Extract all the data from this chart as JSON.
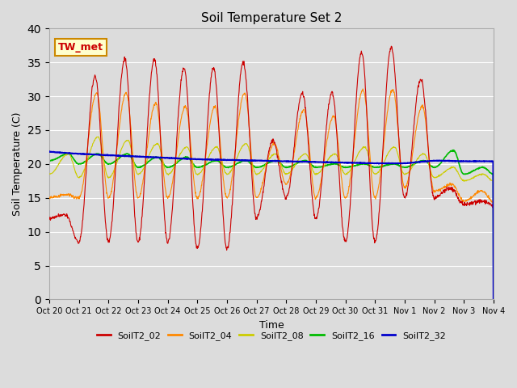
{
  "title": "Soil Temperature Set 2",
  "xlabel": "Time",
  "ylabel": "Soil Temperature (C)",
  "ylim": [
    0,
    40
  ],
  "yticks": [
    0,
    5,
    10,
    15,
    20,
    25,
    30,
    35,
    40
  ],
  "plot_bg_color": "#dcdcdc",
  "fig_bg_color": "#dcdcdc",
  "annotation_text": "TW_met",
  "series_colors": {
    "SoilT2_02": "#cc0000",
    "SoilT2_04": "#ff8800",
    "SoilT2_08": "#cccc00",
    "SoilT2_16": "#00bb00",
    "SoilT2_32": "#0000cc"
  },
  "legend_colors": [
    "#cc0000",
    "#ff8800",
    "#cccc00",
    "#00bb00",
    "#0000cc"
  ],
  "legend_labels": [
    "SoilT2_02",
    "SoilT2_04",
    "SoilT2_08",
    "SoilT2_16",
    "SoilT2_32"
  ],
  "n_points": 1440,
  "n_days": 15
}
